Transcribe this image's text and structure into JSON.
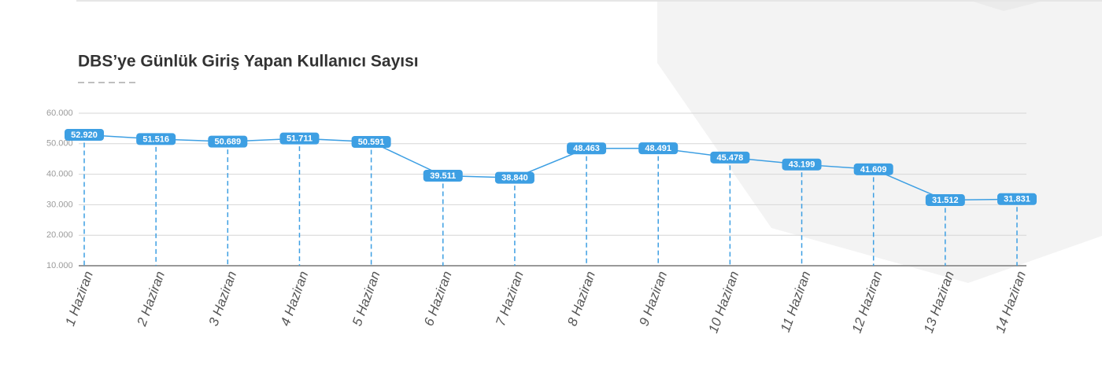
{
  "chart_data": {
    "type": "line",
    "title": "DBS’ye Günlük Giriş Yapan Kullanıcı Sayısı",
    "categories": [
      "1 Haziran",
      "2 Haziran",
      "3 Haziran",
      "4 Haziran",
      "5 Haziran",
      "6 Haziran",
      "7 Haziran",
      "8 Haziran",
      "9 Haziran",
      "10 Haziran",
      "11 Haziran",
      "12 Haziran",
      "13 Haziran",
      "14 Haziran"
    ],
    "values": [
      52920,
      51516,
      50689,
      51711,
      50591,
      39511,
      38840,
      48463,
      48491,
      45478,
      43199,
      41609,
      31512,
      31831
    ],
    "value_labels": [
      "52.920",
      "51.516",
      "50.689",
      "51.711",
      "50.591",
      "39.511",
      "38.840",
      "48.463",
      "48.491",
      "45.478",
      "43.199",
      "41.609",
      "31.512",
      "31.831"
    ],
    "color": "#3d9fe3",
    "ylim": [
      10000,
      60000
    ],
    "yticks": [
      {
        "value": 10000,
        "label": "10.000"
      },
      {
        "value": 20000,
        "label": "20.000"
      },
      {
        "value": 30000,
        "label": "30.000"
      },
      {
        "value": 40000,
        "label": "40.000"
      },
      {
        "value": 50000,
        "label": "50.000"
      },
      {
        "value": 60000,
        "label": "60.000"
      }
    ],
    "grid": true
  }
}
